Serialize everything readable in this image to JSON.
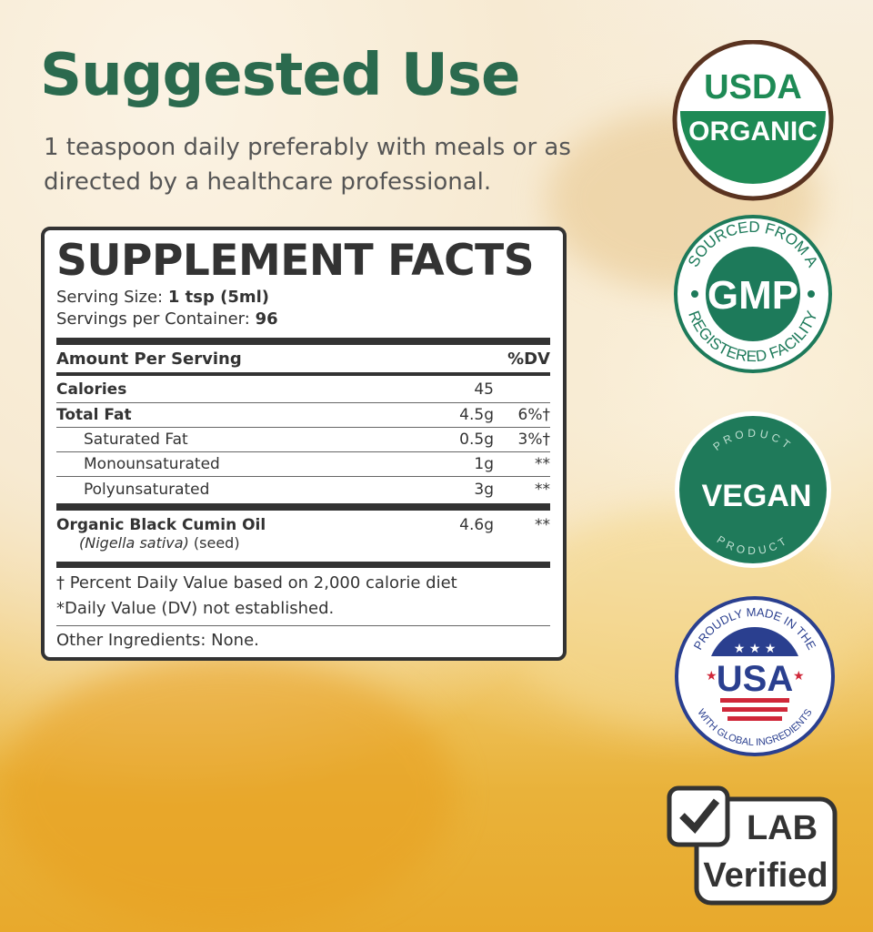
{
  "title": "Suggested Use",
  "subtitle": "1 teaspoon daily preferably with meals or as directed by a healthcare professional.",
  "facts": {
    "heading": "SUPPLEMENT FACTS",
    "serving_size_label": "Serving Size:",
    "serving_size": "1 tsp (5ml)",
    "servings_label": "Servings per Container:",
    "servings": "96",
    "amount_header": "Amount Per Serving",
    "dv_header": "%DV",
    "rows": [
      {
        "name": "Calories",
        "amount": "45",
        "dv": ""
      },
      {
        "name": "Total Fat",
        "amount": "4.5g",
        "dv": "6%†"
      },
      {
        "name": "Saturated Fat",
        "amount": "0.5g",
        "dv": "3%†"
      },
      {
        "name": "Monounsaturated",
        "amount": "1g",
        "dv": "**"
      },
      {
        "name": "Polyunsaturated",
        "amount": "3g",
        "dv": "**"
      }
    ],
    "ingredient": {
      "name": "Organic Black Cumin Oil",
      "latin": "(Nigella sativa)",
      "part": "(seed)",
      "amount": "4.6g",
      "dv": "**"
    },
    "footnote1": "† Percent Daily Value based on 2,000 calorie diet",
    "footnote2": "*Daily Value (DV) not established.",
    "other": "Other Ingredients: None."
  },
  "badges": {
    "usda": {
      "top": "USDA",
      "bottom": "ORGANIC",
      "color": "#1e8a55",
      "ring": "#5a3320"
    },
    "gmp": {
      "arc_top": "SOURCED FROM A",
      "center": "GMP",
      "arc_bottom": "REGISTERED FACILITY",
      "color": "#1d7a5a"
    },
    "vegan": {
      "arc_top": "PRODUCT",
      "center": "VEGAN",
      "arc_bottom": "PRODUCT",
      "color": "#1f7a5a"
    },
    "usa": {
      "arc_top": "PROUDLY MADE IN THE",
      "center": "USA",
      "arc_bottom": "WITH GLOBAL INGREDIENTS",
      "blue": "#2a3f8f",
      "red": "#d0283a"
    },
    "lab": {
      "line1": "LAB",
      "line2": "Verified",
      "color": "#333"
    }
  }
}
